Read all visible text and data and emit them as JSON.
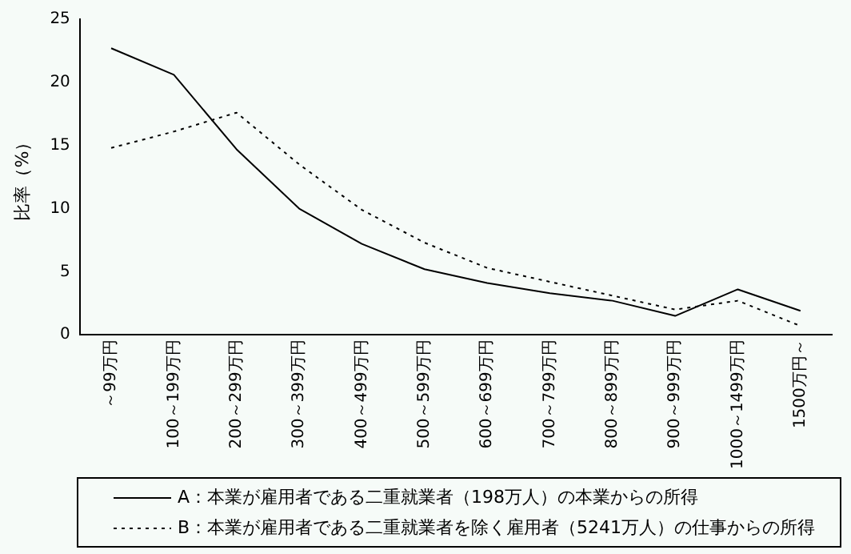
{
  "chart_data": {
    "type": "line",
    "ylabel": "比率（%）",
    "categories": [
      "～99万円",
      "100～199万円",
      "200～299万円",
      "300～399万円",
      "400～499万円",
      "500～599万円",
      "600～699万円",
      "700～799万円",
      "800～899万円",
      "900～999万円",
      "1000～1499万円",
      "1500万円～"
    ],
    "ylim": [
      0,
      25
    ],
    "yticks": [
      0,
      5,
      10,
      15,
      20,
      25
    ],
    "grid": false,
    "legend": "bottom",
    "marker": "none",
    "series": [
      {
        "name": "A：本業が雇用者である二重就業者（198万人）の本業からの所得",
        "color": "#000000",
        "line_style": "solid",
        "values": [
          22.7,
          20.6,
          14.7,
          10.0,
          7.2,
          5.2,
          4.1,
          3.3,
          2.7,
          1.5,
          3.6,
          1.9
        ]
      },
      {
        "name": "B：本業が雇用者である二重就業者を除く雇用者（5241万人）の仕事からの所得",
        "color": "#000000",
        "line_style": "dotted",
        "values": [
          14.8,
          16.1,
          17.6,
          13.5,
          9.9,
          7.3,
          5.3,
          4.2,
          3.1,
          2.0,
          2.7,
          0.7
        ]
      }
    ]
  }
}
